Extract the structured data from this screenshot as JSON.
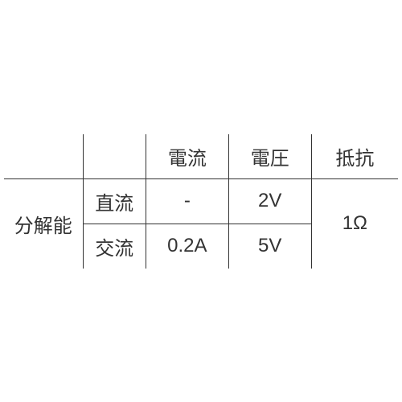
{
  "table": {
    "type": "table",
    "background_color": "#ffffff",
    "border_color": "#333333",
    "text_color": "#333333",
    "font_size": 24,
    "headers": {
      "current": "電流",
      "voltage": "電圧",
      "resistance": "抵抗"
    },
    "row_main_label": "分解能",
    "rows": [
      {
        "sub_label": "直流",
        "current": "-",
        "voltage": "2V"
      },
      {
        "sub_label": "交流",
        "current": "0.2A",
        "voltage": "5V"
      }
    ],
    "resistance_value": "1Ω",
    "column_widths": [
      "20%",
      "16%",
      "21%",
      "21%",
      "22%"
    ]
  }
}
